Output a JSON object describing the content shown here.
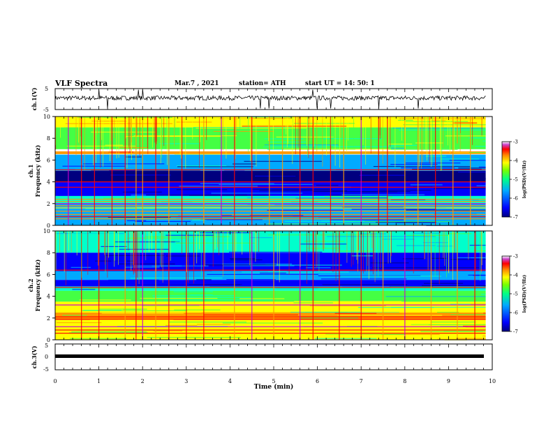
{
  "header": {
    "title": "VLF Spectra",
    "date": "Mar.7 , 2021",
    "station": "station= ATH",
    "start": "start UT =  14: 50: 1"
  },
  "colors": {
    "spectrogram_scale": [
      "#00007f",
      "#0000ff",
      "#00aaff",
      "#00ffcc",
      "#44ff44",
      "#ffff00",
      "#ff9900",
      "#ff0000",
      "#cc00cc",
      "#ffffff"
    ],
    "trace": "#000000"
  },
  "chart_data": [
    {
      "type": "line",
      "panel": "ch1-waveform",
      "ylabel": "ch.1(V)",
      "ylim": [
        -5,
        5
      ],
      "yticks": [
        "5",
        "-5"
      ],
      "baseline_level": 0.5,
      "noise_amplitude": 0.35,
      "spike_times_min": [
        1.0,
        1.2,
        1.9,
        2.0,
        4.7,
        4.9,
        5.9,
        6.0,
        6.3,
        7.4,
        8.3
      ]
    },
    {
      "type": "heatmap",
      "panel": "ch1-spectrogram",
      "ylabel_top": "ch.1",
      "ylabel": "Frequency (kHz)",
      "ylim": [
        0,
        10
      ],
      "yticks": [
        "0",
        "2",
        "4",
        "6",
        "8",
        "10"
      ],
      "colorbar": {
        "label": "log(PSD)(V²/Hz)",
        "range": [
          -7,
          -3
        ],
        "ticks": [
          "-3",
          "-4",
          "-5",
          "-6",
          "-7"
        ]
      },
      "bands_khz": [
        {
          "from": 9.0,
          "to": 10.0,
          "level": 0.55
        },
        {
          "from": 7.0,
          "to": 9.0,
          "level": 0.45
        },
        {
          "from": 6.55,
          "to": 6.8,
          "level": 0.6
        },
        {
          "from": 5.0,
          "to": 6.5,
          "level": 0.2
        },
        {
          "from": 4.0,
          "to": 5.0,
          "level": 0.02
        },
        {
          "from": 2.7,
          "to": 4.0,
          "level": 0.12
        },
        {
          "from": 2.0,
          "to": 2.7,
          "level": 0.3
        },
        {
          "from": 0.0,
          "to": 2.0,
          "level": 0.25
        }
      ],
      "lines_khz": [
        6.6,
        5.1,
        4.0,
        3.5,
        2.4,
        2.2,
        2.0,
        1.8,
        1.6,
        1.3,
        1.0,
        0.8,
        0.6
      ],
      "sferic_times_min": [
        0.3,
        0.6,
        0.9,
        1.3,
        1.6,
        1.85,
        2.0,
        2.3,
        2.6,
        2.9,
        3.4,
        3.8,
        4.1,
        4.5,
        4.9,
        5.2,
        5.6,
        5.9,
        6.3,
        6.6,
        7.0,
        7.4,
        7.6,
        8.0,
        8.3,
        8.7,
        9.1,
        9.5
      ]
    },
    {
      "type": "heatmap",
      "panel": "ch2-spectrogram",
      "ylabel_top": "ch.2",
      "ylabel": "Frequency (kHz)",
      "ylim": [
        0,
        10
      ],
      "yticks": [
        "0",
        "2",
        "4",
        "6",
        "8",
        "10"
      ],
      "colorbar": {
        "label": "log(PSD)(V²/Hz)",
        "range": [
          -7,
          -3
        ],
        "ticks": [
          "-3",
          "-4",
          "-5",
          "-6",
          "-7"
        ]
      },
      "bands_khz": [
        {
          "from": 8.0,
          "to": 10.0,
          "level": 0.3
        },
        {
          "from": 6.3,
          "to": 8.0,
          "level": 0.15
        },
        {
          "from": 5.5,
          "to": 6.3,
          "level": 0.25
        },
        {
          "from": 4.9,
          "to": 5.5,
          "level": 0.1
        },
        {
          "from": 4.5,
          "to": 4.9,
          "level": 0.35
        },
        {
          "from": 3.5,
          "to": 4.5,
          "level": 0.4
        },
        {
          "from": 2.5,
          "to": 3.5,
          "level": 0.5
        },
        {
          "from": 1.8,
          "to": 2.5,
          "level": 0.62
        },
        {
          "from": 0.0,
          "to": 1.8,
          "level": 0.55
        }
      ],
      "lines_khz": [
        6.4,
        4.8,
        3.2,
        2.1,
        1.9,
        1.2,
        0.9,
        0.6,
        0.3
      ],
      "sferic_times_min": [
        0.6,
        1.0,
        1.6,
        1.85,
        2.0,
        2.3,
        2.6,
        3.0,
        3.4,
        4.1,
        4.5,
        5.0,
        5.6,
        5.9,
        6.5,
        7.0,
        7.5,
        8.0,
        8.6,
        9.2,
        9.6
      ]
    },
    {
      "type": "line",
      "panel": "ch3-waveform",
      "ylabel": "ch.3(V)",
      "ylim": [
        -5,
        5
      ],
      "yticks": [
        "5",
        "0",
        "-5"
      ],
      "level": 0.0
    }
  ],
  "time_axis": {
    "label": "Time (min)",
    "range": [
      0,
      10
    ],
    "ticks": [
      "0",
      "1",
      "2",
      "3",
      "4",
      "5",
      "6",
      "7",
      "8",
      "9",
      "10"
    ],
    "data_end": 9.85
  }
}
